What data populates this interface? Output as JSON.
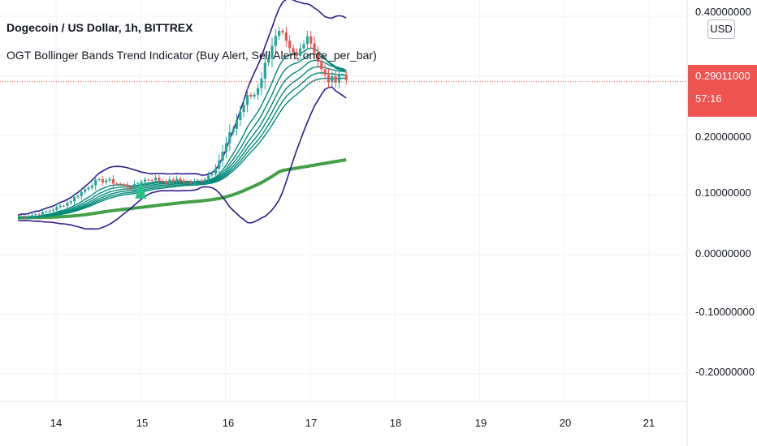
{
  "header": {
    "title": "Dogecoin / US Dollar, 1h, BITTREX",
    "indicator": "OGT Bollinger Bands Trend Indicator (Buy Alert, Sell Alert, once_per_bar)"
  },
  "price_axis": {
    "currency_button": "USD",
    "ticks": [
      "0.40000000",
      "0.20000000",
      "0.10000000",
      "0.00000000",
      "-0.10000000",
      "-0.20000000"
    ],
    "current_price": "0.29011000",
    "countdown": "57:16"
  },
  "time_axis": {
    "ticks": [
      "14",
      "15",
      "16",
      "17",
      "18",
      "19",
      "20",
      "21"
    ]
  },
  "colors": {
    "up_candle": "#26a69a",
    "down_candle": "#ef5350",
    "bollinger_band": "#311b92",
    "ema_ribbon": "#00897b",
    "slow_ema": "#43a047",
    "buy_signal": "#26c281",
    "grid": "#f0f3fa"
  },
  "chart_data": {
    "type": "candlestick",
    "symbol": "Dogecoin / US Dollar",
    "interval": "1h",
    "exchange": "BITTREX",
    "y_range": [
      -0.25,
      0.42
    ],
    "x_range_days": [
      13.5,
      21.4
    ],
    "close_series": [
      [
        13.55,
        0.062
      ],
      [
        13.7,
        0.066
      ],
      [
        13.85,
        0.07
      ],
      [
        14.0,
        0.078
      ],
      [
        14.15,
        0.088
      ],
      [
        14.3,
        0.105
      ],
      [
        14.45,
        0.122
      ],
      [
        14.6,
        0.125
      ],
      [
        14.75,
        0.118
      ],
      [
        14.9,
        0.112
      ],
      [
        15.0,
        0.124
      ],
      [
        15.15,
        0.128
      ],
      [
        15.3,
        0.122
      ],
      [
        15.45,
        0.125
      ],
      [
        15.6,
        0.12
      ],
      [
        15.75,
        0.127
      ],
      [
        15.85,
        0.14
      ],
      [
        15.95,
        0.165
      ],
      [
        16.05,
        0.2
      ],
      [
        16.15,
        0.232
      ],
      [
        16.25,
        0.262
      ],
      [
        16.35,
        0.27
      ],
      [
        16.45,
        0.31
      ],
      [
        16.55,
        0.355
      ],
      [
        16.65,
        0.37
      ],
      [
        16.75,
        0.34
      ],
      [
        16.85,
        0.33
      ],
      [
        16.95,
        0.375
      ],
      [
        17.05,
        0.345
      ],
      [
        17.15,
        0.3
      ],
      [
        17.25,
        0.29
      ],
      [
        17.35,
        0.305
      ],
      [
        17.45,
        0.29
      ]
    ],
    "current_price": 0.29011,
    "buy_signal_day": 15.0
  }
}
